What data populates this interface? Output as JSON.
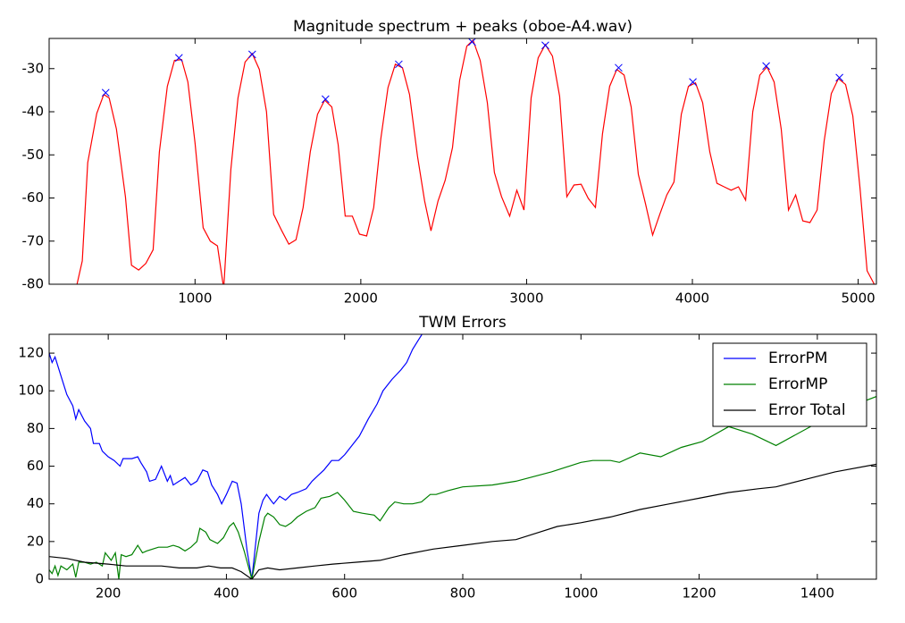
{
  "chart_data": [
    {
      "type": "line",
      "title": "Magnitude spectrum + peaks (oboe-A4.wav)",
      "xlim": [
        120,
        5110
      ],
      "ylim": [
        -80,
        -23
      ],
      "xticks": [
        1000,
        2000,
        3000,
        4000,
        5000
      ],
      "yticks": [
        -80,
        -70,
        -60,
        -50,
        -40,
        -30
      ],
      "series": [
        {
          "color": "#ff0000",
          "x": [
            288,
            320,
            353,
            407,
            450,
            482,
            526,
            580,
            617,
            660,
            703,
            747,
            785,
            833,
            876,
            919,
            957,
            1000,
            1049,
            1092,
            1135,
            1173,
            1216,
            1259,
            1302,
            1345,
            1388,
            1431,
            1474,
            1523,
            1566,
            1609,
            1652,
            1695,
            1739,
            1782,
            1825,
            1863,
            1906,
            1949,
            1992,
            2035,
            2078,
            2121,
            2164,
            2208,
            2251,
            2294,
            2342,
            2385,
            2423,
            2466,
            2509,
            2553,
            2596,
            2639,
            2677,
            2720,
            2763,
            2806,
            2849,
            2898,
            2941,
            2984,
            3027,
            3070,
            3113,
            3156,
            3199,
            3243,
            3286,
            3329,
            3372,
            3415,
            3458,
            3501,
            3544,
            3588,
            3631,
            3674,
            3717,
            3760,
            3803,
            3846,
            3889,
            3933,
            3976,
            4019,
            4062,
            4105,
            4148,
            4191,
            4234,
            4278,
            4321,
            4364,
            4407,
            4450,
            4493,
            4536,
            4580,
            4623,
            4666,
            4709,
            4752,
            4795,
            4838,
            4881,
            4924,
            4968,
            5011,
            5054,
            5097
          ],
          "values": [
            -80,
            -74.6,
            -51.8,
            -40.4,
            -36,
            -36.8,
            -44,
            -59.7,
            -75.6,
            -76.7,
            -75.2,
            -72,
            -49.3,
            -34.1,
            -28.1,
            -27.9,
            -33.1,
            -47.2,
            -66.9,
            -70,
            -71.1,
            -81,
            -53.4,
            -36.8,
            -28.5,
            -26.5,
            -30.2,
            -40,
            -63.8,
            -67.6,
            -70.7,
            -69.7,
            -62.2,
            -49.3,
            -40.6,
            -37.3,
            -38.9,
            -47.6,
            -64.2,
            -64.2,
            -68.4,
            -68.8,
            -62.2,
            -46.2,
            -34.4,
            -29,
            -29.8,
            -36,
            -50.3,
            -60.7,
            -67.6,
            -60.7,
            -55.9,
            -48.3,
            -32.7,
            -24.8,
            -23.4,
            -28.1,
            -37.9,
            -54.1,
            -59.7,
            -64.2,
            -58.2,
            -62.8,
            -36.8,
            -27.5,
            -24.4,
            -27.1,
            -36.4,
            -59.7,
            -57,
            -56.8,
            -60.1,
            -62.2,
            -45.1,
            -34.1,
            -30.2,
            -31.5,
            -38.9,
            -54.5,
            -61.3,
            -68.6,
            -63.8,
            -59.3,
            -56.3,
            -40.6,
            -34.1,
            -33.3,
            -37.9,
            -49.3,
            -56.6,
            -57.4,
            -58.2,
            -57.4,
            -60.5,
            -40,
            -31.5,
            -29.6,
            -33.1,
            -44.1,
            -62.8,
            -59.3,
            -65.3,
            -65.7,
            -62.8,
            -46.8,
            -35.8,
            -32.3,
            -33.7,
            -41,
            -57.6,
            -76.9,
            -80
          ]
        }
      ],
      "peaks": {
        "color": "#0000ff",
        "x": [
          461,
          903,
          1345,
          1787,
          2229,
          2671,
          3113,
          3555,
          4003,
          4445,
          4887
        ],
        "values": [
          -35.6,
          -27.5,
          -26.7,
          -37.1,
          -29,
          -23.8,
          -24.6,
          -29.8,
          -33.1,
          -29.4,
          -32.1
        ]
      }
    },
    {
      "type": "line",
      "title": "TWM Errors",
      "xlim": [
        100,
        1500
      ],
      "ylim": [
        0,
        130
      ],
      "xticks": [
        200,
        400,
        600,
        800,
        1000,
        1200,
        1400
      ],
      "yticks": [
        0,
        20,
        40,
        60,
        80,
        100,
        120
      ],
      "legend": "upper right",
      "series": [
        {
          "name": "ErrorPM",
          "color": "#0000ff",
          "x": [
            100,
            105,
            110,
            120,
            130,
            140,
            145,
            150,
            160,
            170,
            175,
            185,
            190,
            200,
            210,
            220,
            225,
            240,
            250,
            255,
            265,
            270,
            280,
            290,
            300,
            305,
            310,
            320,
            330,
            340,
            350,
            360,
            368,
            375,
            385,
            392,
            400,
            410,
            418,
            425,
            435,
            443,
            455,
            462,
            468,
            475,
            480,
            490,
            500,
            510,
            520,
            535,
            545,
            555,
            565,
            578,
            590,
            600,
            610,
            625,
            640,
            655,
            665,
            680,
            695,
            705,
            715,
            725,
            735
          ],
          "values": [
            120,
            115,
            118,
            108,
            98,
            92,
            85,
            90,
            84,
            80,
            72,
            72,
            68,
            65,
            63,
            60,
            64,
            64,
            65,
            62,
            57,
            52,
            53,
            60,
            52,
            55,
            50,
            52,
            54,
            50,
            52,
            58,
            57,
            50,
            45,
            40,
            45,
            52,
            51,
            40,
            15,
            0,
            35,
            42,
            45,
            42,
            40,
            44,
            42,
            45,
            46,
            48,
            52,
            55,
            58,
            63,
            63,
            66,
            70,
            76,
            85,
            93,
            100,
            106,
            111,
            115,
            122,
            127,
            132
          ]
        },
        {
          "name": "ErrorMP",
          "color": "#008000",
          "x": [
            100,
            105,
            110,
            115,
            120,
            130,
            140,
            145,
            150,
            160,
            170,
            180,
            190,
            195,
            205,
            212,
            218,
            222,
            230,
            240,
            250,
            258,
            265,
            275,
            285,
            300,
            310,
            320,
            330,
            340,
            350,
            355,
            365,
            372,
            385,
            395,
            405,
            412,
            420,
            430,
            443,
            455,
            465,
            470,
            480,
            490,
            500,
            510,
            520,
            535,
            550,
            560,
            575,
            588,
            600,
            615,
            630,
            650,
            660,
            675,
            685,
            700,
            715,
            730,
            745,
            755,
            775,
            800,
            850,
            890,
            950,
            1000,
            1020,
            1050,
            1065,
            1100,
            1135,
            1170,
            1205,
            1250,
            1290,
            1330,
            1400,
            1450,
            1500
          ],
          "values": [
            5,
            3,
            7,
            2,
            7,
            5,
            8,
            1,
            9,
            9,
            8,
            9,
            7,
            14,
            10,
            14,
            0,
            13,
            12,
            13,
            18,
            14,
            15,
            16,
            17,
            17,
            18,
            17,
            15,
            17,
            20,
            27,
            25,
            21,
            19,
            22,
            28,
            30,
            25,
            15,
            0,
            20,
            33,
            35,
            33,
            29,
            28,
            30,
            33,
            36,
            38,
            43,
            44,
            46,
            42,
            36,
            35,
            34,
            31,
            38,
            41,
            40,
            40,
            41,
            45,
            45,
            47,
            49,
            50,
            52,
            57,
            62,
            63,
            63,
            62,
            67,
            65,
            70,
            73,
            81,
            77,
            71,
            83,
            91,
            97
          ]
        },
        {
          "name": "Error Total",
          "color": "#000000",
          "x": [
            100,
            130,
            160,
            200,
            230,
            260,
            290,
            320,
            350,
            370,
            390,
            410,
            425,
            443,
            455,
            470,
            490,
            520,
            550,
            580,
            620,
            660,
            700,
            750,
            800,
            850,
            890,
            930,
            960,
            1000,
            1050,
            1100,
            1150,
            1200,
            1250,
            1300,
            1330,
            1380,
            1430,
            1500
          ],
          "values": [
            12,
            11,
            9,
            8,
            7,
            7,
            7,
            6,
            6,
            7,
            6,
            6,
            4,
            0,
            5,
            6,
            5,
            6,
            7,
            8,
            9,
            10,
            13,
            16,
            18,
            20,
            21,
            25,
            28,
            30,
            33,
            37,
            40,
            43,
            46,
            48,
            49,
            53,
            57,
            61
          ]
        }
      ]
    }
  ]
}
